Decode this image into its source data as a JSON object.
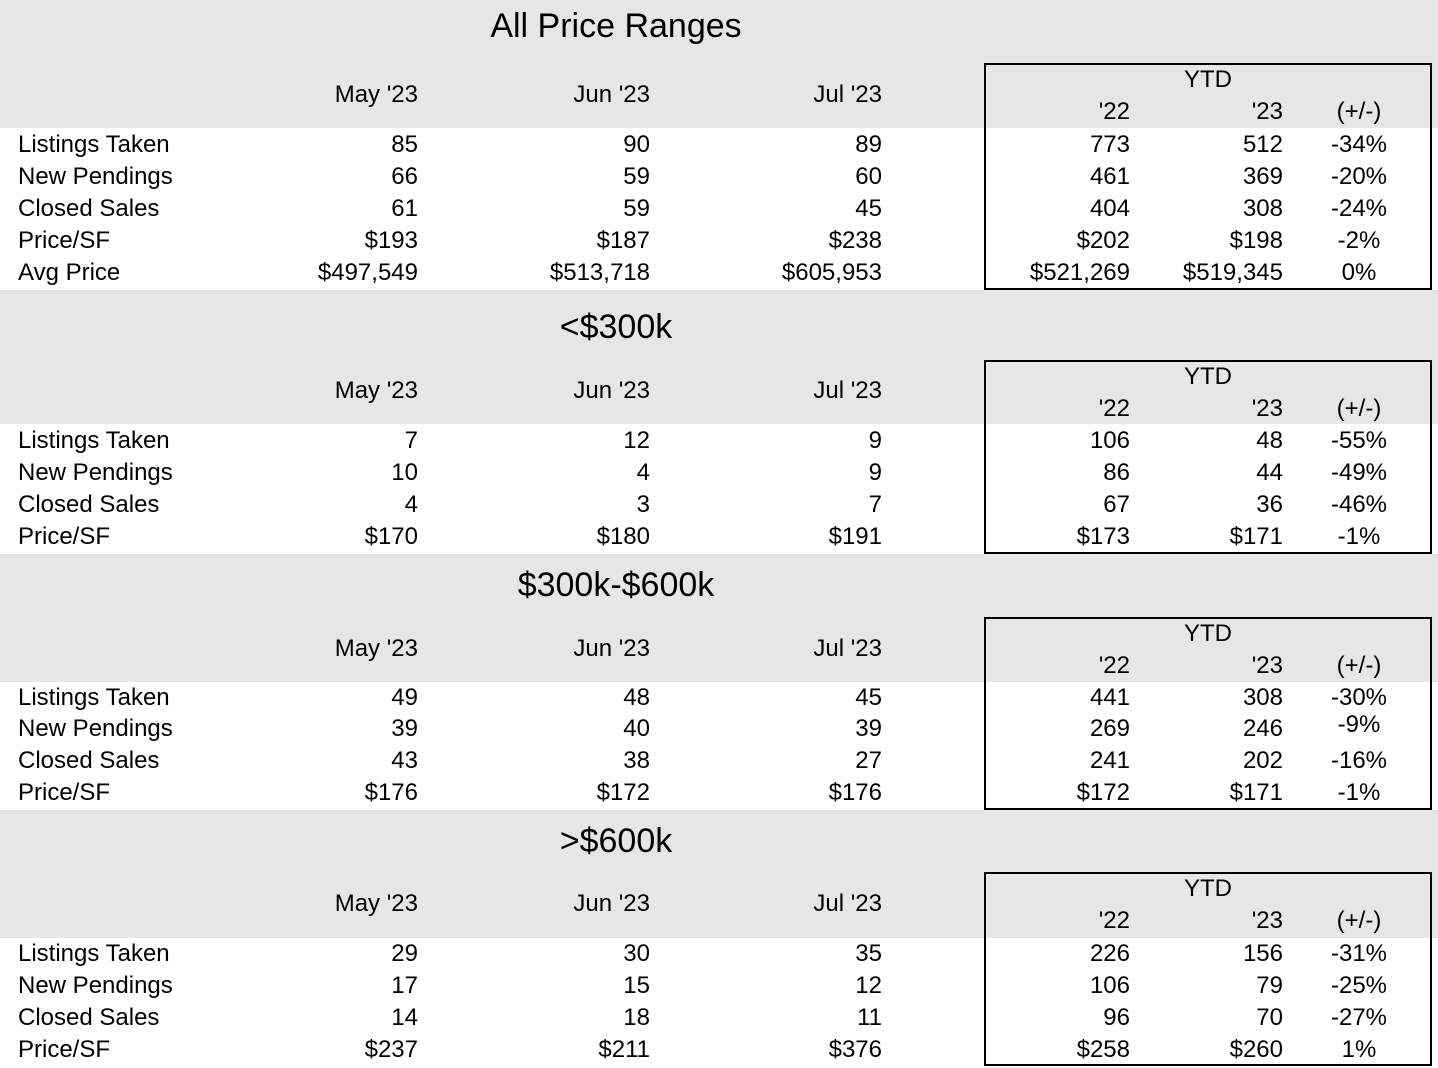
{
  "columns": {
    "may": "May '23",
    "jun": "Jun '23",
    "jul": "Jul '23",
    "ytd": "YTD",
    "y22": "'22",
    "y23": "'23",
    "pm": "(+/-)"
  },
  "sections": [
    {
      "title": "All Price Ranges",
      "rows": [
        {
          "label": "Listings Taken",
          "may": "85",
          "jun": "90",
          "jul": "89",
          "y22": "773",
          "y23": "512",
          "pm": "-34%"
        },
        {
          "label": "New Pendings",
          "may": "66",
          "jun": "59",
          "jul": "60",
          "y22": "461",
          "y23": "369",
          "pm": "-20%"
        },
        {
          "label": "Closed Sales",
          "may": "61",
          "jun": "59",
          "jul": "45",
          "y22": "404",
          "y23": "308",
          "pm": "-24%"
        },
        {
          "label": "Price/SF",
          "may": "$193",
          "jun": "$187",
          "jul": "$238",
          "y22": "$202",
          "y23": "$198",
          "pm": "-2%"
        },
        {
          "label": "Avg Price",
          "may": "$497,549",
          "jun": "$513,718",
          "jul": "$605,953",
          "y22": "$521,269",
          "y23": "$519,345",
          "pm": "0%"
        }
      ]
    },
    {
      "title": "<$300k",
      "rows": [
        {
          "label": "Listings Taken",
          "may": "7",
          "jun": "12",
          "jul": "9",
          "y22": "106",
          "y23": "48",
          "pm": "-55%"
        },
        {
          "label": "New Pendings",
          "may": "10",
          "jun": "4",
          "jul": "9",
          "y22": "86",
          "y23": "44",
          "pm": "-49%"
        },
        {
          "label": "Closed Sales",
          "may": "4",
          "jun": "3",
          "jul": "7",
          "y22": "67",
          "y23": "36",
          "pm": "-46%"
        },
        {
          "label": "Price/SF",
          "may": "$170",
          "jun": "$180",
          "jul": "$191",
          "y22": "$173",
          "y23": "$171",
          "pm": "-1%"
        }
      ]
    },
    {
      "title": "$300k-$600k",
      "rows": [
        {
          "label": "Listings Taken",
          "may": "49",
          "jun": "48",
          "jul": "45",
          "y22": "441",
          "y23": "308",
          "pm": "-30%"
        },
        {
          "label": "New Pendings",
          "may": "39",
          "jun": "40",
          "jul": "39",
          "y22": "269",
          "y23": "246",
          "pm": "-9%"
        },
        {
          "label": "Closed Sales",
          "may": "43",
          "jun": "38",
          "jul": "27",
          "y22": "241",
          "y23": "202",
          "pm": "-16%"
        },
        {
          "label": "Price/SF",
          "may": "$176",
          "jun": "$172",
          "jul": "$176",
          "y22": "$172",
          "y23": "$171",
          "pm": "-1%"
        }
      ]
    },
    {
      "title": ">$600k",
      "rows": [
        {
          "label": "Listings Taken",
          "may": "29",
          "jun": "30",
          "jul": "35",
          "y22": "226",
          "y23": "156",
          "pm": "-31%"
        },
        {
          "label": "New Pendings",
          "may": "17",
          "jun": "15",
          "jul": "12",
          "y22": "106",
          "y23": "79",
          "pm": "-25%"
        },
        {
          "label": "Closed Sales",
          "may": "14",
          "jun": "18",
          "jul": "11",
          "y22": "96",
          "y23": "70",
          "pm": "-27%"
        },
        {
          "label": "Price/SF",
          "may": "$237",
          "jun": "$211",
          "jul": "$376",
          "y22": "$258",
          "y23": "$260",
          "pm": "1%"
        }
      ]
    }
  ]
}
